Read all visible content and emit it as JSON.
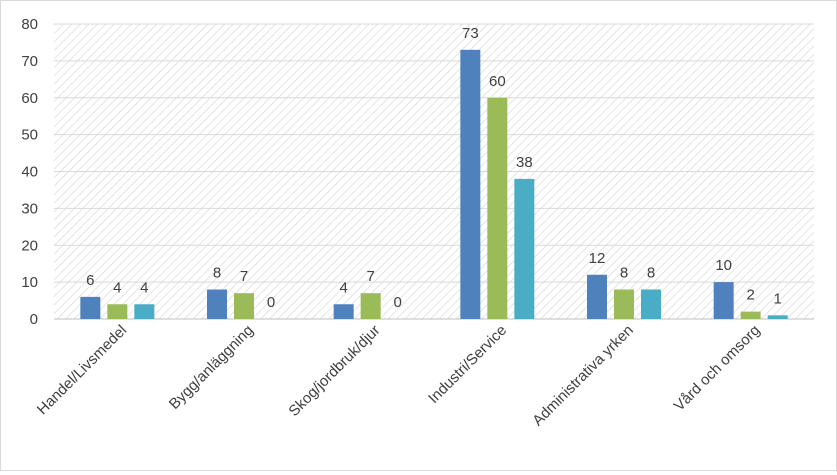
{
  "chart_data": {
    "type": "bar",
    "categories": [
      "Handel/Livsmedel",
      "Bygg/anläggning",
      "Skog/jordbruk/djur",
      "Industri/Service",
      "Administrativa yrken",
      "Vård och omsorg"
    ],
    "series": [
      {
        "values": [
          6,
          8,
          4,
          73,
          12,
          10
        ],
        "color": "#4f81bd"
      },
      {
        "values": [
          4,
          7,
          7,
          60,
          8,
          2
        ],
        "color": "#9bbb59"
      },
      {
        "values": [
          4,
          0,
          0,
          38,
          8,
          1
        ],
        "color": "#4bacc6"
      }
    ],
    "ylim": [
      0,
      80
    ],
    "yticks": [
      0,
      10,
      20,
      30,
      40,
      50,
      60,
      70,
      80
    ],
    "grid": true,
    "legend": "none",
    "title": "",
    "xlabel": "",
    "ylabel": ""
  }
}
